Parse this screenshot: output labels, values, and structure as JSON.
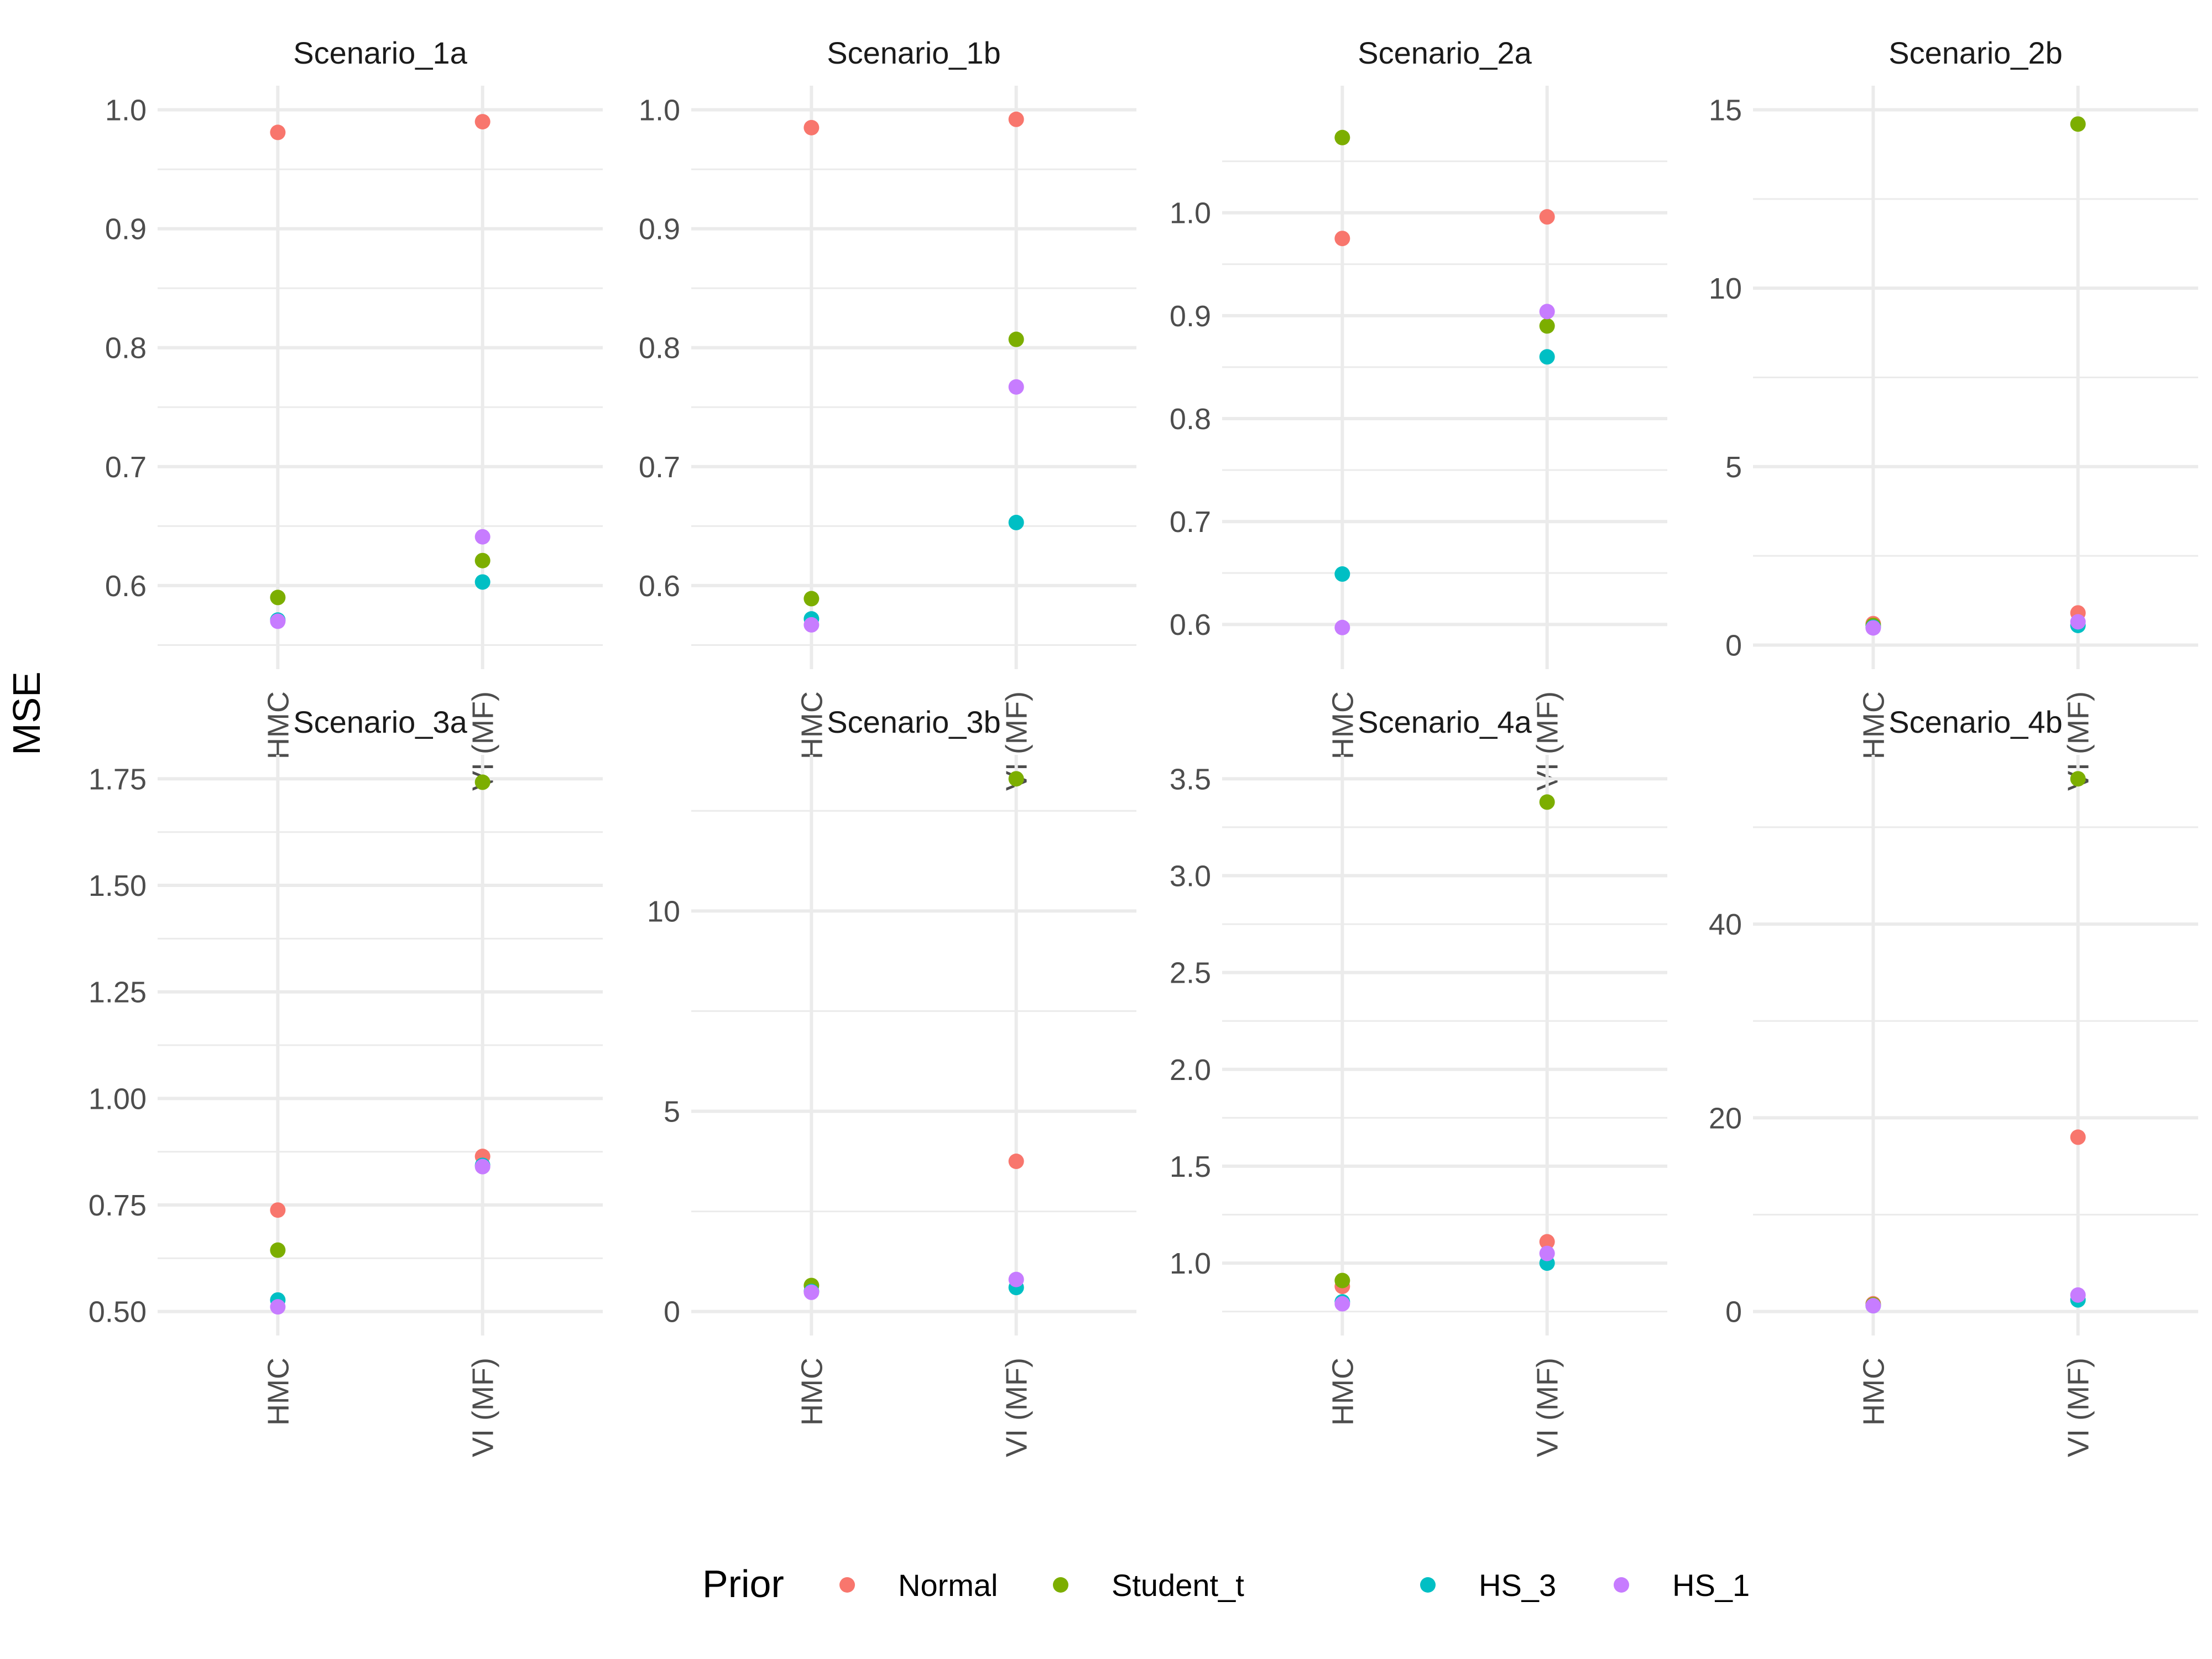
{
  "colors": {
    "Normal": "#F8766D",
    "Student_t": "#7CAE00",
    "HS_3": "#00BFC4",
    "HS_1": "#C77CFF",
    "grid": "#ebebeb"
  },
  "chart_data": {
    "type": "scatter",
    "ylabel": "MSE",
    "xlabel": "",
    "categories": [
      "HMC",
      "VI (MF)"
    ],
    "legend": {
      "title": "Prior",
      "position": "bottom",
      "items": [
        "Normal",
        "Student_t",
        "HS_3",
        "HS_1"
      ]
    },
    "grid": true,
    "panels": [
      {
        "name": "Scenario_1a",
        "ylim": [
          0.55,
          1.0
        ],
        "ticks": [
          "0.6",
          "0.7",
          "0.8",
          "0.9",
          "1.0"
        ],
        "series": [
          {
            "name": "Normal",
            "values": [
              0.981,
              0.99
            ]
          },
          {
            "name": "Student_t",
            "values": [
              0.59,
              0.621
            ]
          },
          {
            "name": "HS_3",
            "values": [
              0.571,
              0.603
            ]
          },
          {
            "name": "HS_1",
            "values": [
              0.57,
              0.641
            ]
          }
        ]
      },
      {
        "name": "Scenario_1b",
        "ylim": [
          0.55,
          1.0
        ],
        "ticks": [
          "0.6",
          "0.7",
          "0.8",
          "0.9",
          "1.0"
        ],
        "series": [
          {
            "name": "Normal",
            "values": [
              0.985,
              0.992
            ]
          },
          {
            "name": "Student_t",
            "values": [
              0.589,
              0.807
            ]
          },
          {
            "name": "HS_3",
            "values": [
              0.572,
              0.653
            ]
          },
          {
            "name": "HS_1",
            "values": [
              0.567,
              0.767
            ]
          }
        ]
      },
      {
        "name": "Scenario_2a",
        "ylim": [
          0.58,
          1.1
        ],
        "ticks": [
          "0.6",
          "0.7",
          "0.8",
          "0.9",
          "1.0"
        ],
        "series": [
          {
            "name": "Normal",
            "values": [
              0.975,
              0.996
            ]
          },
          {
            "name": "Student_t",
            "values": [
              1.073,
              0.89
            ]
          },
          {
            "name": "HS_3",
            "values": [
              0.649,
              0.86
            ]
          },
          {
            "name": "HS_1",
            "values": [
              0.597,
              0.904
            ]
          }
        ]
      },
      {
        "name": "Scenario_2b",
        "ylim": [
          0,
          15
        ],
        "ticks": [
          "0",
          "5",
          "10",
          "15"
        ],
        "series": [
          {
            "name": "Normal",
            "values": [
              0.6,
              0.9
            ]
          },
          {
            "name": "Student_t",
            "values": [
              0.55,
              14.6
            ]
          },
          {
            "name": "HS_3",
            "values": [
              0.5,
              0.55
            ]
          },
          {
            "name": "HS_1",
            "values": [
              0.48,
              0.65
            ]
          }
        ]
      },
      {
        "name": "Scenario_3a",
        "ylim": [
          0.5,
          1.75
        ],
        "ticks": [
          "0.50",
          "0.75",
          "1.00",
          "1.25",
          "1.50",
          "1.75"
        ],
        "series": [
          {
            "name": "Normal",
            "values": [
              0.738,
              0.864
            ]
          },
          {
            "name": "Student_t",
            "values": [
              0.644,
              1.742
            ]
          },
          {
            "name": "HS_3",
            "values": [
              0.527,
              0.843
            ]
          },
          {
            "name": "HS_1",
            "values": [
              0.511,
              0.84
            ]
          }
        ]
      },
      {
        "name": "Scenario_3b",
        "ylim": [
          0,
          13.3
        ],
        "ticks": [
          "0",
          "5",
          "10"
        ],
        "series": [
          {
            "name": "Normal",
            "values": [
              0.5,
              3.75
            ]
          },
          {
            "name": "Student_t",
            "values": [
              0.65,
              13.3
            ]
          },
          {
            "name": "HS_3",
            "values": [
              0.5,
              0.6
            ]
          },
          {
            "name": "HS_1",
            "values": [
              0.48,
              0.8
            ]
          }
        ]
      },
      {
        "name": "Scenario_4a",
        "ylim": [
          0.75,
          3.5
        ],
        "ticks": [
          "1.0",
          "1.5",
          "2.0",
          "2.5",
          "3.0",
          "3.5"
        ],
        "series": [
          {
            "name": "Normal",
            "values": [
              0.88,
              1.11
            ]
          },
          {
            "name": "Student_t",
            "values": [
              0.91,
              3.38
            ]
          },
          {
            "name": "HS_3",
            "values": [
              0.8,
              1.0
            ]
          },
          {
            "name": "HS_1",
            "values": [
              0.79,
              1.05
            ]
          }
        ]
      },
      {
        "name": "Scenario_4b",
        "ylim": [
          0,
          55
        ],
        "ticks": [
          "0",
          "20",
          "40"
        ],
        "series": [
          {
            "name": "Normal",
            "values": [
              0.8,
              18
            ]
          },
          {
            "name": "Student_t",
            "values": [
              0.7,
              55
            ]
          },
          {
            "name": "HS_3",
            "values": [
              0.6,
              1.2
            ]
          },
          {
            "name": "HS_1",
            "values": [
              0.6,
              1.7
            ]
          }
        ]
      }
    ]
  }
}
